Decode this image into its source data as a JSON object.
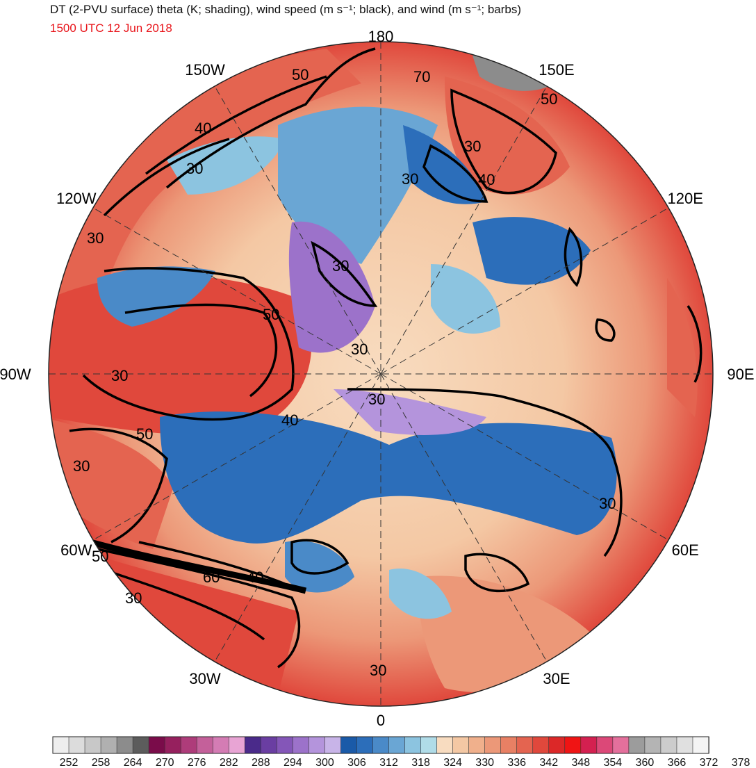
{
  "header": {
    "title": "DT (2-PVU surface) theta (K; shading), wind speed (m s⁻¹; black), and wind (m s⁻¹; barbs)",
    "valid_time": "1500 UTC 12 Jun 2018"
  },
  "map": {
    "projection": "north polar stereographic",
    "longitude_labels": [
      {
        "name": "0",
        "lon": 0
      },
      {
        "name": "30E",
        "lon": 30
      },
      {
        "name": "60E",
        "lon": 60
      },
      {
        "name": "90E",
        "lon": 90
      },
      {
        "name": "120E",
        "lon": 120
      },
      {
        "name": "150E",
        "lon": 150
      },
      {
        "name": "180",
        "lon": 180
      },
      {
        "name": "150W",
        "lon": -150
      },
      {
        "name": "120W",
        "lon": -120
      },
      {
        "name": "90W",
        "lon": -90
      },
      {
        "name": "60W",
        "lon": -60
      },
      {
        "name": "30W",
        "lon": -30
      }
    ],
    "wind_speed_contour_labels": [
      "30",
      "40",
      "50",
      "60",
      "70"
    ]
  },
  "colorbar": {
    "units": "K",
    "labels": [
      "252",
      "258",
      "264",
      "270",
      "276",
      "282",
      "288",
      "294",
      "300",
      "306",
      "312",
      "318",
      "324",
      "330",
      "336",
      "342",
      "348",
      "354",
      "360",
      "366",
      "372",
      "378"
    ],
    "colors": [
      "#eeeeee",
      "#dcdcdc",
      "#c8c8c8",
      "#b0b0b0",
      "#8c8c8c",
      "#5c5c5c",
      "#7a0c4a",
      "#96205e",
      "#ae3c7a",
      "#c4609a",
      "#d47cb4",
      "#e8a4d4",
      "#4a2a8a",
      "#6a3ea2",
      "#8456b8",
      "#9c72ca",
      "#b494dc",
      "#c8b4e8",
      "#1a5aa8",
      "#2c6eba",
      "#4a8ac8",
      "#6aa6d4",
      "#8cc4e0",
      "#b0dce8",
      "#f8dcc0",
      "#f4c8a4",
      "#f0b08c",
      "#ec9878",
      "#e88064",
      "#e46450",
      "#e0483c",
      "#dc2828",
      "#f01414",
      "#d42050",
      "#dc4878",
      "#e4709c",
      "#9c9c9c",
      "#b4b4b4",
      "#cccccc",
      "#e0e0e0",
      "#f4f4f4"
    ]
  }
}
